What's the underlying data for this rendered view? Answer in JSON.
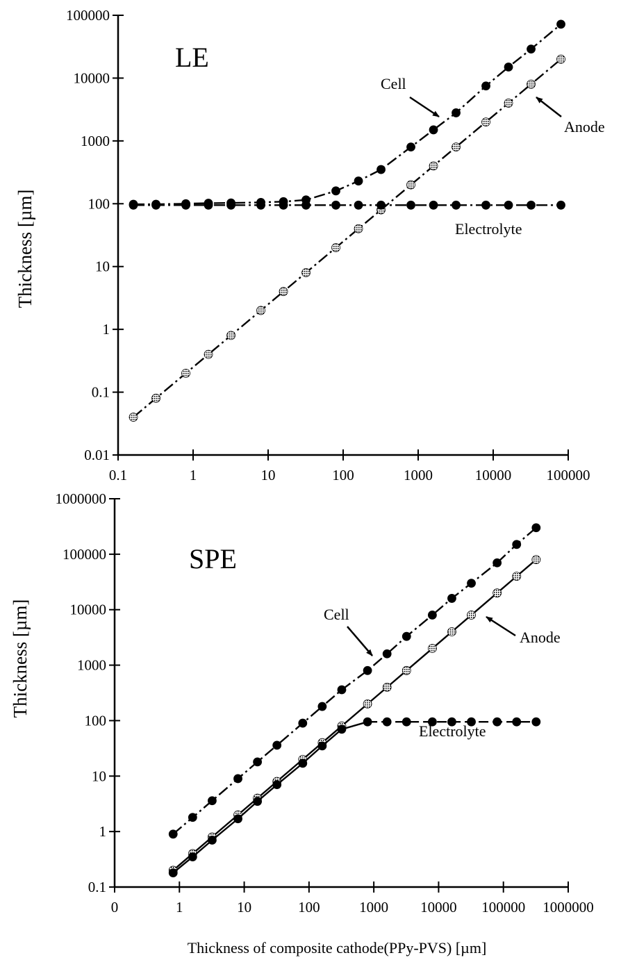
{
  "chart_data": [
    {
      "type": "line",
      "panel_label": "LE",
      "xlabel": "",
      "ylabel": "Thickness [µm]",
      "x_scale": "log",
      "y_scale": "log",
      "xlim": [
        0.1,
        100000
      ],
      "ylim": [
        0.01,
        100000
      ],
      "x_ticks": [
        0.1,
        1,
        10,
        100,
        1000,
        10000,
        100000
      ],
      "x_tick_labels": [
        "0.1",
        "1",
        "10",
        "100",
        "1000",
        "10000",
        "100000"
      ],
      "y_ticks": [
        0.01,
        0.1,
        1,
        10,
        100,
        1000,
        10000,
        100000
      ],
      "y_tick_labels": [
        "0.01",
        "0.1",
        "1",
        "10",
        "100",
        "1000",
        "10000",
        "100000"
      ],
      "grid": false,
      "series": [
        {
          "name": "Cell",
          "color": "#000000",
          "marker": "filled-circle",
          "line_style": "dash-dot",
          "x": [
            0.16,
            0.32,
            0.8,
            1.6,
            3.2,
            8,
            16,
            32,
            80,
            160,
            320,
            800,
            1600,
            3200,
            8000,
            16000,
            32000,
            80000
          ],
          "y": [
            98,
            98,
            100,
            102,
            103,
            105,
            108,
            115,
            160,
            230,
            350,
            800,
            1500,
            2800,
            7500,
            15000,
            29000,
            72000
          ]
        },
        {
          "name": "Anode",
          "color": "#000000",
          "marker": "hatched-circle",
          "line_style": "dash-dot",
          "x": [
            0.16,
            0.32,
            0.8,
            1.6,
            3.2,
            8,
            16,
            32,
            80,
            160,
            320,
            800,
            1600,
            3200,
            8000,
            16000,
            32000,
            80000
          ],
          "y": [
            0.04,
            0.08,
            0.2,
            0.4,
            0.8,
            2,
            4,
            8,
            20,
            40,
            80,
            200,
            400,
            800,
            2000,
            4000,
            8000,
            20000
          ]
        },
        {
          "name": "Electrolyte",
          "color": "#000000",
          "marker": "filled-circle",
          "line_style": "dash-dot",
          "x": [
            0.16,
            0.32,
            0.8,
            1.6,
            3.2,
            8,
            16,
            32,
            80,
            160,
            320,
            800,
            1600,
            3200,
            8000,
            16000,
            32000,
            80000
          ],
          "y": [
            95,
            95,
            95,
            95,
            95,
            95,
            95,
            95,
            95,
            95,
            95,
            95,
            95,
            95,
            95,
            95,
            95,
            95
          ]
        }
      ],
      "annotations": [
        {
          "text": "Cell",
          "points_to": "Cell"
        },
        {
          "text": "Anode",
          "points_to": "Anode"
        },
        {
          "text": "Electrolyte",
          "points_to": "Electrolyte"
        }
      ]
    },
    {
      "type": "line",
      "panel_label": "SPE",
      "xlabel": "Thickness of composite cathode(PPy-PVS) [µm]",
      "ylabel": "Thickness [µm]",
      "x_scale": "log",
      "y_scale": "log",
      "xlim": [
        0.1,
        1000000
      ],
      "ylim": [
        0.1,
        1000000
      ],
      "x_ticks": [
        0.1,
        1,
        10,
        100,
        1000,
        10000,
        100000,
        1000000
      ],
      "x_tick_labels": [
        "0",
        "1",
        "10",
        "100",
        "1000",
        "10000",
        "100000",
        "1000000"
      ],
      "y_ticks": [
        0.1,
        1,
        10,
        100,
        1000,
        10000,
        100000,
        1000000
      ],
      "y_tick_labels": [
        "0.1",
        "1",
        "10",
        "100",
        "1000",
        "10000",
        "100000",
        "1000000"
      ],
      "grid": false,
      "series": [
        {
          "name": "Cell",
          "color": "#000000",
          "marker": "filled-circle",
          "line_style": "dash-dot",
          "x": [
            0.8,
            1.6,
            3.2,
            8,
            16,
            32,
            80,
            160,
            320,
            800,
            1600,
            3200,
            8000,
            16000,
            32000,
            80000,
            160000,
            320000
          ],
          "y": [
            0.9,
            1.8,
            3.6,
            9,
            18,
            36,
            90,
            180,
            360,
            800,
            1600,
            3300,
            8000,
            16000,
            30000,
            70000,
            150000,
            300000
          ]
        },
        {
          "name": "Anode",
          "color": "#000000",
          "marker": "hatched-circle",
          "line_style": "solid",
          "x": [
            0.8,
            1.6,
            3.2,
            8,
            16,
            32,
            80,
            160,
            320,
            800,
            1600,
            3200,
            8000,
            16000,
            32000,
            80000,
            160000,
            320000
          ],
          "y": [
            0.2,
            0.4,
            0.8,
            2,
            4,
            8,
            20,
            40,
            80,
            200,
            400,
            800,
            2000,
            4000,
            8000,
            20000,
            40000,
            80000
          ]
        },
        {
          "name": "Electrolyte",
          "color": "#000000",
          "marker": "filled-circle",
          "line_style": "solid-then-dashed",
          "x": [
            0.8,
            1.6,
            3.2,
            8,
            16,
            32,
            80,
            160,
            320,
            800,
            1600,
            3200,
            8000,
            16000,
            32000,
            80000,
            160000,
            320000
          ],
          "y": [
            0.18,
            0.35,
            0.7,
            1.7,
            3.5,
            7,
            17,
            35,
            70,
            95,
            95,
            95,
            95,
            95,
            95,
            95,
            95,
            95
          ]
        }
      ],
      "annotations": [
        {
          "text": "Cell",
          "points_to": "Cell"
        },
        {
          "text": "Anode",
          "points_to": "Anode"
        },
        {
          "text": "Electrolyte",
          "points_to": "Electrolyte"
        }
      ]
    }
  ]
}
